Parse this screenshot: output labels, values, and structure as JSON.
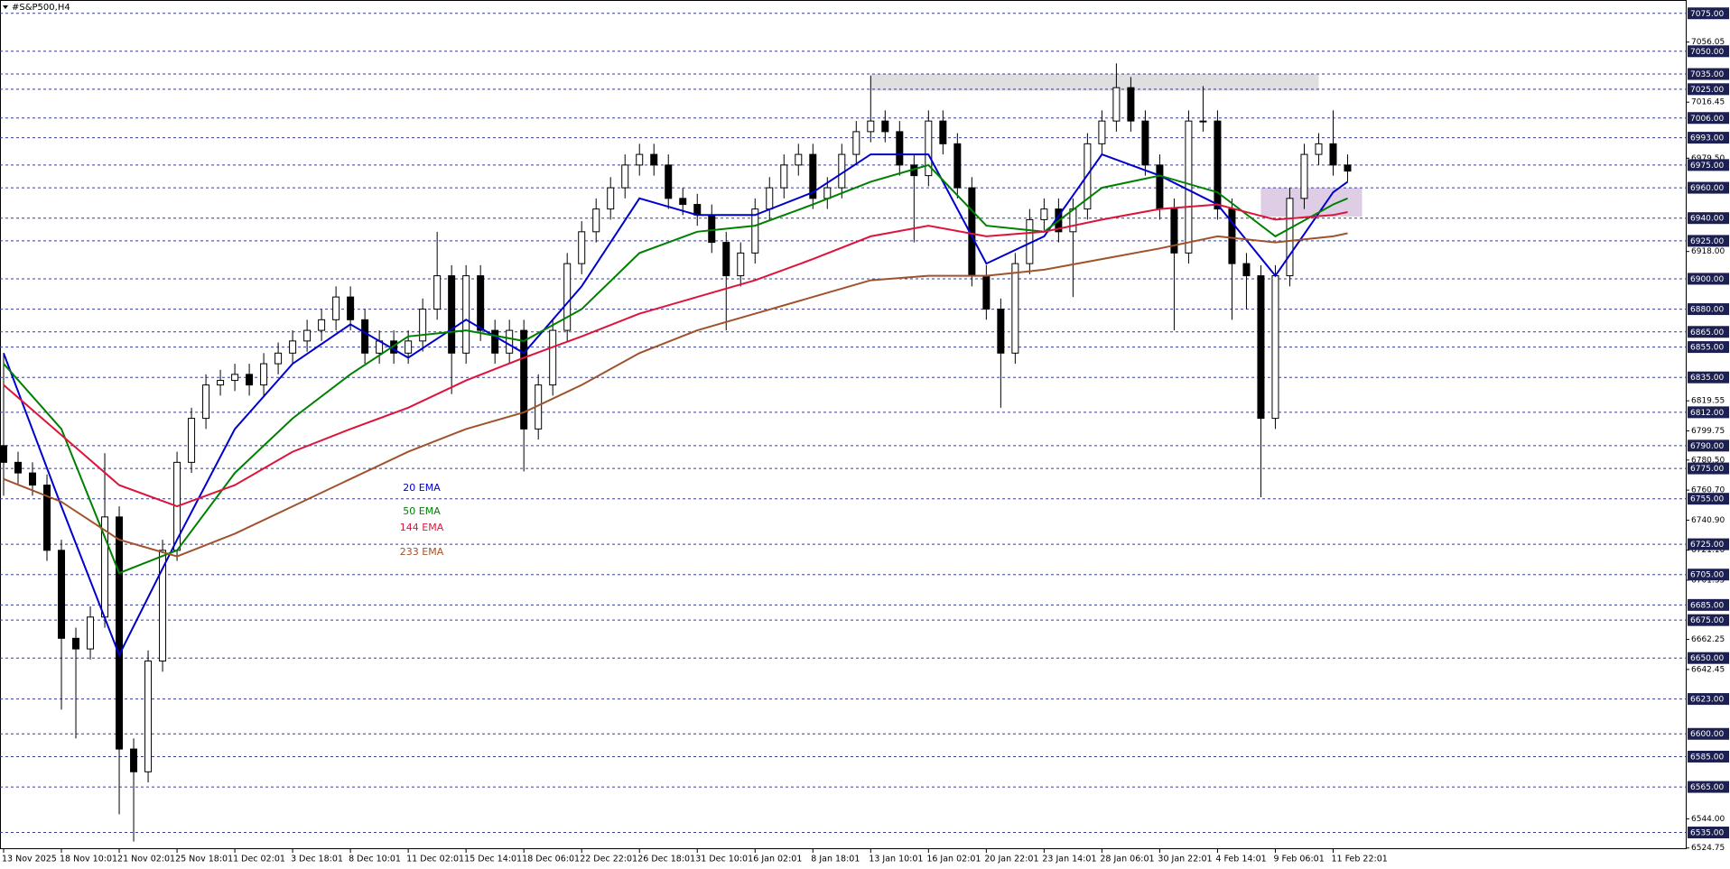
{
  "chart_data": {
    "type": "candlestick",
    "title": "#S&P500,H4",
    "up_color": "#ffffff",
    "down_color": "#000000",
    "level_color": "#3a3f8a",
    "label_box_color": "#1c2050",
    "xlim": [
      -0.25,
      116.4
    ],
    "ylim": [
      6524,
      7082
    ],
    "xticks": [
      {
        "value": 0,
        "label": "13 Nov 2025"
      },
      {
        "value": 4,
        "label": "18 Nov 10:01"
      },
      {
        "value": 8,
        "label": "21 Nov 02:01"
      },
      {
        "value": 12,
        "label": "25 Nov 18:01"
      },
      {
        "value": 16,
        "label": "1 Dec 02:01"
      },
      {
        "value": 20,
        "label": "3 Dec 18:01"
      },
      {
        "value": 24,
        "label": "8 Dec 10:01"
      },
      {
        "value": 28,
        "label": "11 Dec 02:01"
      },
      {
        "value": 32,
        "label": "15 Dec 14:01"
      },
      {
        "value": 36,
        "label": "18 Dec 06:01"
      },
      {
        "value": 40,
        "label": "22 Dec 22:01"
      },
      {
        "value": 44,
        "label": "26 Dec 18:01"
      },
      {
        "value": 48,
        "label": "31 Dec 10:01"
      },
      {
        "value": 52,
        "label": "6 Jan 02:01"
      },
      {
        "value": 56,
        "label": "8 Jan 18:01"
      },
      {
        "value": 60,
        "label": "13 Jan 10:01"
      },
      {
        "value": 64,
        "label": "16 Jan 02:01"
      },
      {
        "value": 68,
        "label": "20 Jan 22:01"
      },
      {
        "value": 72,
        "label": "23 Jan 14:01"
      },
      {
        "value": 76,
        "label": "28 Jan 06:01"
      },
      {
        "value": 80,
        "label": "30 Jan 22:01"
      },
      {
        "value": 84,
        "label": "4 Feb 14:01"
      },
      {
        "value": 88,
        "label": "9 Feb 06:01"
      },
      {
        "value": 92,
        "label": "11 Feb 22:01"
      }
    ],
    "yticks": [
      7056.05,
      7016.45,
      {
        "value": 6979.5,
        "label": "6979.50"
      },
      {
        "value": 6918,
        "label": "6918.00"
      },
      6819.55,
      6799.75,
      {
        "value": 6780.5,
        "label": "6780.50"
      },
      {
        "value": 6760.7,
        "label": "6760.70"
      },
      {
        "value": 6740.9,
        "label": "6740.90"
      },
      {
        "value": 6721.1,
        "label": "6721.10"
      },
      6701.35,
      6662.25,
      6642.45,
      {
        "value": 6544,
        "label": "6544.00"
      },
      6524.75
    ],
    "levels": [
      {
        "value": 7075,
        "label": "7075.00"
      },
      {
        "value": 7050,
        "label": "7050.00"
      },
      {
        "value": 7035,
        "label": "7035.00"
      },
      {
        "value": 7025,
        "label": "7025.00"
      },
      {
        "value": 7006,
        "label": "7006.00"
      },
      {
        "value": 6993,
        "label": "6993.00"
      },
      {
        "value": 6975,
        "label": "6975.00"
      },
      {
        "value": 6960,
        "label": "6960.00"
      },
      {
        "value": 6940,
        "label": "6940.00"
      },
      {
        "value": 6925,
        "label": "6925.00"
      },
      {
        "value": 6900,
        "label": "6900.00"
      },
      {
        "value": 6880,
        "label": "6880.00"
      },
      {
        "value": 6865,
        "label": "6865.00"
      },
      {
        "value": 6855,
        "label": "6855.00"
      },
      {
        "value": 6835,
        "label": "6835.00"
      },
      {
        "value": 6812,
        "label": "6812.00"
      },
      {
        "value": 6790,
        "label": "6790.00"
      },
      {
        "value": 6775,
        "label": "6775.00"
      },
      {
        "value": 6755,
        "label": "6755.00"
      },
      {
        "value": 6725,
        "label": "6725.00"
      },
      {
        "value": 6705,
        "label": "6705.00"
      },
      {
        "value": 6685,
        "label": "6685.00"
      },
      {
        "value": 6675,
        "label": "6675.00"
      },
      {
        "value": 6650,
        "label": "6650.00"
      },
      {
        "value": 6623,
        "label": "6623.00"
      },
      {
        "value": 6600,
        "label": "6600.00"
      },
      {
        "value": 6585,
        "label": "6585.00"
      },
      {
        "value": 6565,
        "label": "6565.00"
      },
      {
        "value": 6535,
        "label": "6535.00"
      }
    ],
    "open": [
      6790,
      6779,
      6772,
      6764,
      6721,
      6663,
      6656,
      6677,
      6743,
      6590,
      6575,
      6648,
      6721,
      6779,
      6808,
      6830,
      6833,
      6837,
      6830,
      6844,
      6851,
      6859,
      6866,
      6873,
      6888,
      6873,
      6851,
      6859,
      6851,
      6859,
      6880,
      6902,
      6851,
      6902,
      6866,
      6851,
      6866,
      6801,
      6830,
      6866,
      6910,
      6931,
      6946,
      6960,
      6975,
      6982,
      6975,
      6953,
      6949,
      6942,
      6924,
      6902,
      6917,
      6946,
      6960,
      6975,
      6982,
      6953,
      6960,
      6982,
      6997,
      7004,
      6997,
      6975,
      6968,
      7004,
      6989,
      6960,
      6902,
      6880,
      6851,
      6910,
      6939,
      6946,
      6931,
      6946,
      6989,
      7004,
      7026,
      7004,
      6975,
      6946,
      6917,
      7004,
      7004,
      6946,
      6910,
      6902,
      6808,
      6902,
      6953,
      6982,
      6989,
      6975
    ],
    "high": [
      6851,
      6786,
      6779,
      6771,
      6728,
      6670,
      6684,
      6785,
      6750,
      6597,
      6655,
      6728,
      6786,
      6815,
      6837,
      6840,
      6844,
      6844,
      6851,
      6858,
      6866,
      6873,
      6880,
      6895,
      6895,
      6880,
      6866,
      6866,
      6866,
      6887,
      6931,
      6909,
      6909,
      6909,
      6873,
      6873,
      6873,
      6837,
      6873,
      6917,
      6938,
      6953,
      6967,
      6982,
      6989,
      6989,
      6982,
      6960,
      6956,
      6949,
      6931,
      6924,
      6953,
      6967,
      6982,
      6989,
      6989,
      6967,
      6989,
      7004,
      7034,
      7011,
      7004,
      6982,
      7011,
      7011,
      6996,
      6967,
      6909,
      6887,
      6917,
      6946,
      6953,
      6953,
      6953,
      6996,
      7011,
      7042,
      7033,
      7011,
      6982,
      6953,
      7011,
      7027,
      7011,
      6953,
      6917,
      6909,
      6909,
      6960,
      6989,
      6996,
      7011,
      6982
    ],
    "low": [
      6757,
      6765,
      6757,
      6714,
      6616,
      6597,
      6649,
      6670,
      6547,
      6529,
      6568,
      6641,
      6714,
      6772,
      6801,
      6823,
      6826,
      6823,
      6823,
      6837,
      6844,
      6852,
      6859,
      6866,
      6866,
      6844,
      6844,
      6844,
      6844,
      6852,
      6873,
      6824,
      6844,
      6859,
      6844,
      6844,
      6773,
      6794,
      6823,
      6859,
      6903,
      6924,
      6939,
      6953,
      6968,
      6968,
      6946,
      6942,
      6935,
      6917,
      6866,
      6895,
      6910,
      6939,
      6953,
      6968,
      6946,
      6946,
      6953,
      6975,
      6990,
      6990,
      6968,
      6924,
      6961,
      6982,
      6953,
      6895,
      6873,
      6815,
      6844,
      6903,
      6932,
      6924,
      6888,
      6939,
      6982,
      6997,
      6997,
      6968,
      6939,
      6866,
      6910,
      6997,
      6939,
      6873,
      6880,
      6756,
      6801,
      6895,
      6946,
      6975,
      6968,
      6964
    ],
    "close": [
      6779,
      6772,
      6764,
      6721,
      6663,
      6656,
      6677,
      6743,
      6590,
      6575,
      6648,
      6721,
      6779,
      6808,
      6830,
      6833,
      6837,
      6830,
      6844,
      6851,
      6859,
      6866,
      6873,
      6888,
      6873,
      6851,
      6859,
      6851,
      6859,
      6880,
      6902,
      6851,
      6902,
      6866,
      6851,
      6866,
      6801,
      6830,
      6866,
      6910,
      6931,
      6946,
      6960,
      6975,
      6982,
      6975,
      6953,
      6949,
      6942,
      6924,
      6902,
      6917,
      6946,
      6960,
      6975,
      6982,
      6953,
      6960,
      6982,
      6997,
      7004,
      6997,
      6975,
      6968,
      7004,
      6989,
      6960,
      6902,
      6880,
      6851,
      6910,
      6939,
      6946,
      6931,
      6946,
      6989,
      7004,
      7026,
      7004,
      6975,
      6946,
      6917,
      7004,
      7004,
      6946,
      6910,
      6902,
      6808,
      6902,
      6953,
      6982,
      6989,
      6975,
      6971
    ],
    "indicators": [
      {
        "name": "20 EMA",
        "color": "#0000cc",
        "x": [
          0,
          4,
          8,
          12,
          16,
          20,
          24,
          28,
          32,
          36,
          40,
          44,
          48,
          52,
          56,
          60,
          64,
          68,
          72,
          76,
          80,
          84,
          88,
          92,
          93
        ],
        "values": [
          6851,
          6750,
          6652,
          6728,
          6801,
          6844,
          6870,
          6848,
          6873,
          6851,
          6895,
          6953,
          6942,
          6942,
          6957,
          6982,
          6982,
          6910,
          6928,
          6982,
          6968,
          6949,
          6902,
          6957,
          6964
        ]
      },
      {
        "name": "50 EMA",
        "color": "#008000",
        "x": [
          0,
          4,
          8,
          12,
          16,
          20,
          24,
          28,
          32,
          36,
          40,
          44,
          48,
          52,
          56,
          60,
          64,
          68,
          72,
          76,
          80,
          84,
          88,
          92,
          93
        ],
        "values": [
          6844,
          6801,
          6706,
          6721,
          6772,
          6808,
          6837,
          6862,
          6866,
          6859,
          6880,
          6917,
          6931,
          6935,
          6949,
          6964,
          6975,
          6935,
          6931,
          6960,
          6968,
          6957,
          6928,
          6949,
          6953
        ]
      },
      {
        "name": "144 EMA",
        "color": "#dc143c",
        "x": [
          0,
          4,
          8,
          12,
          16,
          20,
          24,
          28,
          32,
          36,
          40,
          44,
          48,
          52,
          56,
          60,
          64,
          68,
          72,
          76,
          80,
          84,
          88,
          92,
          93
        ],
        "values": [
          6830,
          6797,
          6764,
          6750,
          6764,
          6786,
          6801,
          6815,
          6833,
          6848,
          6862,
          6877,
          6888,
          6899,
          6913,
          6928,
          6935,
          6928,
          6931,
          6939,
          6946,
          6949,
          6939,
          6942,
          6944
        ]
      },
      {
        "name": "233 EMA",
        "color": "#a0522d",
        "x": [
          0,
          4,
          8,
          12,
          16,
          20,
          24,
          28,
          32,
          36,
          40,
          44,
          48,
          52,
          56,
          60,
          64,
          68,
          72,
          76,
          80,
          84,
          88,
          92,
          93
        ],
        "values": [
          6768,
          6753,
          6728,
          6717,
          6732,
          6750,
          6768,
          6786,
          6801,
          6812,
          6830,
          6851,
          6866,
          6877,
          6888,
          6899,
          6902,
          6902,
          6906,
          6913,
          6920,
          6928,
          6924,
          6928,
          6930
        ]
      }
    ],
    "zones": [
      {
        "x": [
          60,
          91
        ],
        "y": [
          7024,
          7035
        ],
        "color": "#d9d9d9"
      },
      {
        "x": [
          87,
          94
        ],
        "y": [
          6941,
          6960
        ],
        "color": "#d8c4e0"
      }
    ]
  }
}
